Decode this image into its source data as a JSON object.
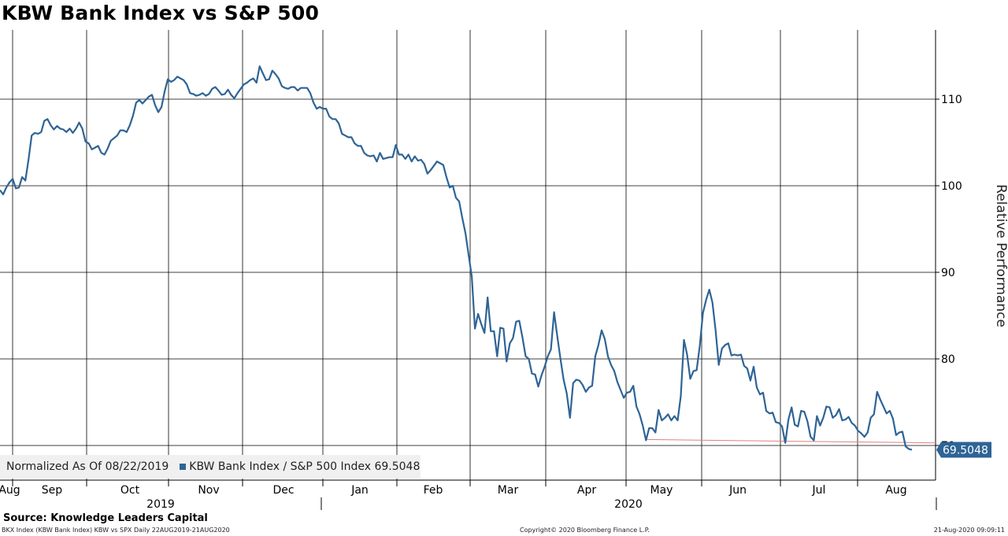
{
  "chart_data": {
    "type": "line",
    "title": "KBW Bank Index vs S&P 500",
    "ylabel": "Relative Performance",
    "xlabel": "",
    "ylim": [
      66,
      118
    ],
    "y_ticks": [
      70,
      80,
      90,
      100,
      110
    ],
    "y_tick_labels": [
      "70",
      "80",
      "90",
      "100",
      "110"
    ],
    "x_month_labels": [
      "Aug",
      "Sep",
      "Oct",
      "Nov",
      "Dec",
      "Jan",
      "Feb",
      "Mar",
      "Apr",
      "May",
      "Jun",
      "Jul",
      "Aug"
    ],
    "x_year_labels": [
      "2019",
      "2020"
    ],
    "grid": true,
    "line_color": "#2e6496",
    "reference_line_color": "#e08080",
    "last_value_label": "69.5048",
    "series": [
      {
        "name": "KBW Bank Index / S&P 500 Index",
        "values": [
          99.5,
          99.0,
          99.8,
          100.4,
          100.8,
          99.7,
          99.8,
          101.0,
          100.6,
          103.0,
          105.8,
          106.1,
          106.0,
          106.2,
          107.5,
          107.7,
          107.0,
          106.5,
          106.9,
          106.6,
          106.5,
          106.2,
          106.6,
          106.1,
          106.6,
          107.3,
          106.6,
          105.1,
          104.9,
          104.2,
          104.4,
          104.6,
          103.8,
          103.6,
          104.3,
          105.2,
          105.5,
          105.8,
          106.4,
          106.4,
          106.2,
          107.0,
          108.1,
          109.6,
          109.9,
          109.5,
          109.9,
          110.3,
          110.5,
          109.3,
          108.5,
          109.1,
          110.9,
          112.3,
          112.0,
          112.2,
          112.6,
          112.4,
          112.2,
          111.7,
          110.7,
          110.6,
          110.4,
          110.5,
          110.7,
          110.4,
          110.6,
          111.2,
          111.4,
          111.0,
          110.5,
          110.6,
          111.1,
          110.5,
          110.1,
          110.7,
          111.2,
          111.7,
          111.9,
          112.2,
          112.4,
          111.9,
          113.8,
          113.0,
          112.2,
          112.3,
          113.3,
          112.9,
          112.4,
          111.5,
          111.3,
          111.2,
          111.4,
          111.4,
          111.0,
          111.3,
          111.3,
          111.3,
          110.7,
          109.6,
          108.9,
          109.1,
          108.9,
          108.9,
          108.0,
          107.7,
          107.7,
          107.2,
          106.0,
          105.8,
          105.6,
          105.6,
          104.9,
          104.6,
          104.6,
          103.8,
          103.5,
          103.4,
          103.5,
          102.8,
          103.8,
          103.1,
          103.2,
          103.3,
          103.3,
          104.7,
          103.6,
          103.6,
          103.1,
          103.6,
          102.8,
          103.4,
          102.9,
          103.0,
          102.5,
          101.4,
          101.8,
          102.3,
          102.8,
          102.6,
          102.4,
          101.0,
          99.8,
          100.0,
          98.6,
          98.2,
          96.3,
          94.5,
          92.0,
          89.5,
          83.5,
          85.2,
          84.0,
          83.0,
          87.1,
          83.2,
          83.2,
          80.3,
          83.6,
          83.5,
          79.7,
          81.8,
          82.4,
          84.3,
          84.4,
          82.5,
          80.3,
          80.0,
          78.3,
          78.2,
          76.8,
          78.1,
          79.1,
          80.3,
          81.1,
          85.4,
          82.6,
          80.0,
          77.6,
          76.0,
          73.2,
          77.2,
          77.6,
          77.5,
          77.0,
          76.2,
          76.7,
          76.9,
          80.3,
          81.6,
          83.3,
          82.3,
          80.3,
          79.3,
          78.6,
          77.3,
          76.4,
          75.5,
          76.1,
          76.2,
          76.9,
          74.5,
          73.6,
          72.3,
          70.6,
          72.0,
          72.0,
          71.5,
          74.1,
          72.9,
          73.2,
          73.6,
          72.9,
          73.4,
          72.9,
          75.7,
          82.2,
          80.5,
          77.7,
          78.6,
          78.7,
          81.5,
          85.3,
          86.8,
          88.0,
          86.5,
          83.3,
          79.3,
          81.2,
          81.6,
          81.8,
          80.4,
          80.5,
          80.4,
          80.5,
          79.2,
          78.9,
          77.5,
          79.1,
          76.7,
          75.9,
          76.1,
          74.0,
          73.7,
          73.8,
          72.7,
          72.6,
          72.2,
          70.3,
          73.0,
          74.4,
          72.4,
          72.2,
          74.0,
          73.9,
          72.8,
          71.0,
          70.6,
          73.4,
          72.3,
          73.2,
          74.5,
          74.4,
          73.2,
          73.5,
          74.2,
          72.9,
          73.0,
          73.3,
          72.6,
          72.3,
          71.7,
          71.4,
          71.0,
          71.5,
          73.2,
          73.6,
          76.2,
          75.3,
          74.5,
          73.7,
          74.0,
          73.1,
          71.2,
          71.5,
          71.6,
          69.9,
          69.6,
          69.5048
        ]
      }
    ]
  },
  "legend": {
    "normalized_label": "Normalized As Of 08/22/2019",
    "series_label": "KBW Bank Index / S&P 500 Index 69.5048"
  },
  "source_note": "Source: Knowledge Leaders Capital",
  "footer": {
    "left": "BKX Index (KBW Bank Index) KBW vs SPX  Daily 22AUG2019-21AUG2020",
    "middle": "Copyright© 2020 Bloomberg Finance L.P.",
    "right": "21-Aug-2020 09:09:11"
  }
}
